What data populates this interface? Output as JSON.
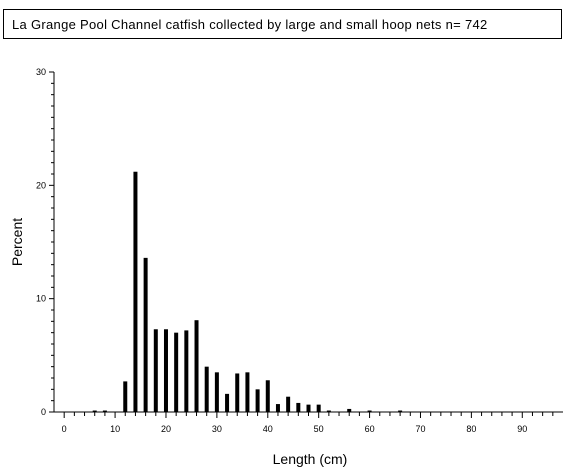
{
  "chart_data": {
    "type": "bar",
    "title": "La Grange Pool Channel catfish collected by large and small hoop nets n= 742",
    "xlabel": "Length (cm)",
    "ylabel": "Percent",
    "xlim": [
      -2,
      98
    ],
    "ylim": [
      0,
      30
    ],
    "x_ticks": [
      0,
      10,
      20,
      30,
      40,
      50,
      60,
      70,
      80,
      90
    ],
    "y_ticks": [
      0,
      10,
      20,
      30
    ],
    "x": [
      6,
      8,
      12,
      14,
      16,
      18,
      20,
      22,
      24,
      26,
      28,
      30,
      32,
      34,
      36,
      38,
      40,
      42,
      44,
      46,
      48,
      50,
      52,
      56,
      60,
      66
    ],
    "values": [
      0.13,
      0.13,
      2.7,
      21.2,
      13.6,
      7.3,
      7.3,
      7.0,
      7.2,
      8.1,
      4.0,
      3.5,
      1.6,
      3.4,
      3.5,
      2.0,
      2.8,
      0.7,
      1.35,
      0.8,
      0.65,
      0.65,
      0.13,
      0.27,
      0.13,
      0.13
    ],
    "grid": false,
    "legend": "none"
  }
}
